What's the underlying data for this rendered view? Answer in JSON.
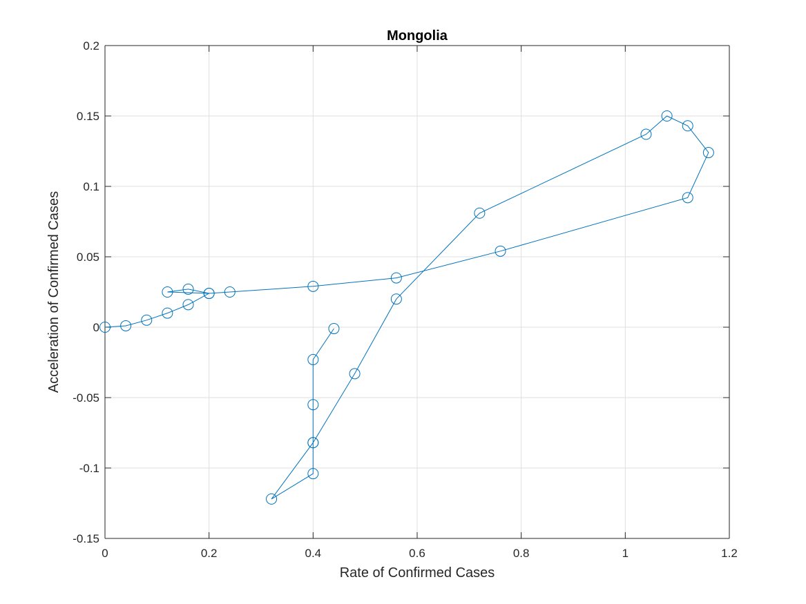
{
  "chart_data": {
    "type": "line",
    "title": "Mongolia",
    "xlabel": "Rate of Confirmed Cases",
    "ylabel": "Acceleration of Confirmed Cases",
    "xlim": [
      0,
      1.2
    ],
    "ylim": [
      -0.15,
      0.2
    ],
    "xticks": [
      0,
      0.2,
      0.4,
      0.6,
      0.8,
      1,
      1.2
    ],
    "yticks": [
      -0.15,
      -0.1,
      -0.05,
      0,
      0.05,
      0.1,
      0.15,
      0.2
    ],
    "xtick_labels": [
      "0",
      "0.2",
      "0.4",
      "0.6",
      "0.8",
      "1",
      "1.2"
    ],
    "ytick_labels": [
      "-0.15",
      "-0.1",
      "-0.05",
      "0",
      "0.05",
      "0.1",
      "0.15",
      "0.2"
    ],
    "grid": true,
    "marker": "circle",
    "color": "#0072BD",
    "series": [
      {
        "x": [
          0,
          0.04,
          0.08,
          0.12,
          0.16,
          0.2,
          0.12,
          0.16,
          0.2,
          0.24,
          0.4,
          0.56,
          0.76,
          1.12,
          1.16,
          1.12,
          1.08,
          1.04,
          0.72,
          0.56,
          0.48,
          0.4,
          0.32,
          0.4,
          0.4,
          0.4,
          0.4,
          0.44
        ],
        "y": [
          0,
          0.001,
          0.005,
          0.01,
          0.016,
          0.024,
          0.025,
          0.027,
          0.024,
          0.025,
          0.029,
          0.035,
          0.054,
          0.092,
          0.124,
          0.143,
          0.15,
          0.137,
          0.081,
          0.02,
          -0.033,
          -0.082,
          -0.122,
          -0.104,
          -0.082,
          -0.055,
          -0.023,
          -0.001
        ]
      }
    ]
  }
}
